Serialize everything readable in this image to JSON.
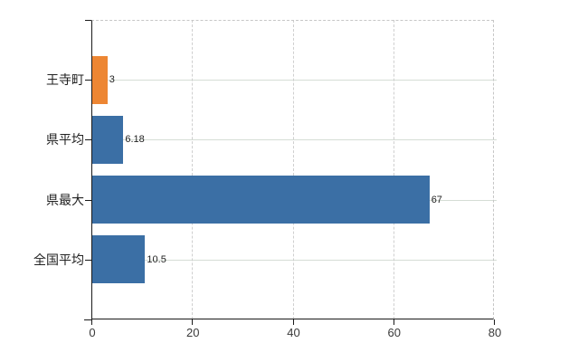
{
  "chart_data": {
    "type": "bar",
    "orientation": "horizontal",
    "title": "",
    "xlabel": "",
    "ylabel": "",
    "categories": [
      "王寺町",
      "県平均",
      "県最大",
      "全国平均"
    ],
    "values": [
      3,
      6.18,
      67,
      10.5
    ],
    "value_labels": [
      "3",
      "6.18",
      "67",
      "10.5"
    ],
    "series_colors": [
      "#ed8633",
      "#3b6fa5",
      "#3b6fa5",
      "#3b6fa5"
    ],
    "xlim": [
      0,
      80
    ],
    "x_tick_labels": [
      "0",
      "20",
      "40",
      "60",
      "80"
    ],
    "x_tick_values": [
      0,
      20,
      40,
      60,
      80
    ],
    "grid": "on",
    "legend": "none"
  },
  "colors": {
    "highlight_bar": "#ed8633",
    "default_bar": "#3b6fa5",
    "axis": "#1a1a1a",
    "horizontal_gridline": "#d5ddd5",
    "vertical_gridline": "#cfcfcf",
    "dashed_border": "#c6c6c6",
    "background": "#ffffff"
  }
}
